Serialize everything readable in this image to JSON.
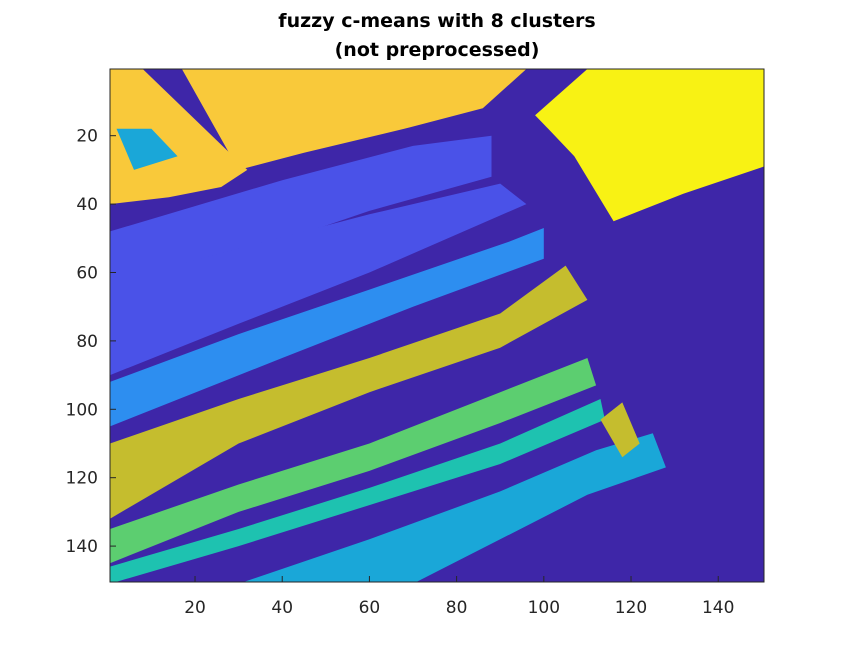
{
  "chart_data": {
    "type": "heatmap",
    "title_line1": "fuzzy c-means with 8 clusters",
    "title_line2": "(not preprocessed)",
    "xlabel": "",
    "ylabel": "",
    "xlim": [
      0.5,
      150.5
    ],
    "ylim": [
      0.5,
      150.5
    ],
    "y_direction": "reversed",
    "x_ticks": [
      20,
      40,
      60,
      80,
      100,
      120,
      140
    ],
    "y_ticks": [
      20,
      40,
      60,
      80,
      100,
      120,
      140
    ],
    "grid": false,
    "n_clusters": 8,
    "cluster_colors": [
      "#3e26a8",
      "#4a52e8",
      "#2d8ef0",
      "#1aa7d8",
      "#1ec2b0",
      "#5cce70",
      "#c5bd2e",
      "#f8f214"
    ],
    "extra_color": "#f9c93a",
    "regions": [
      {
        "name": "upper-left field",
        "color": "#f9c93a",
        "polygon": [
          [
            0.5,
            0.5
          ],
          [
            8,
            0.5
          ],
          [
            32,
            30
          ],
          [
            26,
            35
          ],
          [
            14,
            38
          ],
          [
            0.5,
            40
          ]
        ]
      },
      {
        "name": "upper field",
        "color": "#f9c93a",
        "polygon": [
          [
            17,
            0.5
          ],
          [
            96,
            0.5
          ],
          [
            86,
            12
          ],
          [
            68,
            18
          ],
          [
            45,
            25
          ],
          [
            30,
            30
          ]
        ]
      },
      {
        "name": "field speckle a",
        "color": "#1aa7d8",
        "polygon": [
          [
            2,
            18
          ],
          [
            10,
            18
          ],
          [
            16,
            26
          ],
          [
            6,
            30
          ]
        ]
      },
      {
        "name": "blue road strip",
        "color": "#4a52e8",
        "polygon": [
          [
            0.5,
            48
          ],
          [
            40,
            33
          ],
          [
            70,
            23
          ],
          [
            88,
            20
          ],
          [
            88,
            32
          ],
          [
            60,
            42
          ],
          [
            30,
            55
          ],
          [
            0.5,
            65
          ]
        ]
      },
      {
        "name": "blue block",
        "color": "#4a52e8",
        "polygon": [
          [
            0.5,
            63
          ],
          [
            30,
            53
          ],
          [
            60,
            43
          ],
          [
            90,
            34
          ],
          [
            96,
            40
          ],
          [
            60,
            60
          ],
          [
            30,
            75
          ],
          [
            0.5,
            90
          ]
        ]
      },
      {
        "name": "cyan strip",
        "color": "#2d8ef0",
        "polygon": [
          [
            0.5,
            92
          ],
          [
            30,
            78
          ],
          [
            60,
            65
          ],
          [
            92,
            51
          ],
          [
            100,
            47
          ],
          [
            100,
            56
          ],
          [
            70,
            70
          ],
          [
            40,
            85
          ],
          [
            0.5,
            105
          ]
        ]
      },
      {
        "name": "olive strip",
        "color": "#c5bd2e",
        "polygon": [
          [
            0.5,
            110
          ],
          [
            30,
            97
          ],
          [
            60,
            85
          ],
          [
            90,
            72
          ],
          [
            105,
            58
          ],
          [
            110,
            68
          ],
          [
            90,
            82
          ],
          [
            60,
            95
          ],
          [
            30,
            110
          ],
          [
            0.5,
            132
          ]
        ]
      },
      {
        "name": "green strip",
        "color": "#5cce70",
        "polygon": [
          [
            0.5,
            135
          ],
          [
            30,
            122
          ],
          [
            60,
            110
          ],
          [
            90,
            95
          ],
          [
            110,
            85
          ],
          [
            112,
            93
          ],
          [
            90,
            104
          ],
          [
            60,
            118
          ],
          [
            30,
            130
          ],
          [
            0.5,
            145
          ]
        ]
      },
      {
        "name": "teal strip",
        "color": "#1ec2b0",
        "polygon": [
          [
            0.5,
            146
          ],
          [
            30,
            135
          ],
          [
            60,
            123
          ],
          [
            90,
            110
          ],
          [
            113,
            97
          ],
          [
            114,
            103
          ],
          [
            90,
            116
          ],
          [
            60,
            128
          ],
          [
            30,
            140
          ],
          [
            0.5,
            151
          ]
        ]
      },
      {
        "name": "sky strip",
        "color": "#1aa7d8",
        "polygon": [
          [
            30,
            151
          ],
          [
            60,
            138
          ],
          [
            90,
            124
          ],
          [
            112,
            112
          ],
          [
            125,
            107
          ],
          [
            128,
            117
          ],
          [
            110,
            125
          ],
          [
            90,
            138
          ],
          [
            70,
            151
          ]
        ]
      },
      {
        "name": "yellow field",
        "color": "#f8f214",
        "polygon": [
          [
            110,
            0.5
          ],
          [
            150.5,
            0.5
          ],
          [
            150.5,
            29
          ],
          [
            132,
            37
          ],
          [
            116,
            45
          ],
          [
            107,
            26
          ],
          [
            101,
            18
          ],
          [
            98,
            14
          ]
        ]
      },
      {
        "name": "olive patch",
        "color": "#c5bd2e",
        "polygon": [
          [
            113,
            103
          ],
          [
            118,
            98
          ],
          [
            122,
            110
          ],
          [
            118,
            114
          ]
        ]
      }
    ]
  }
}
